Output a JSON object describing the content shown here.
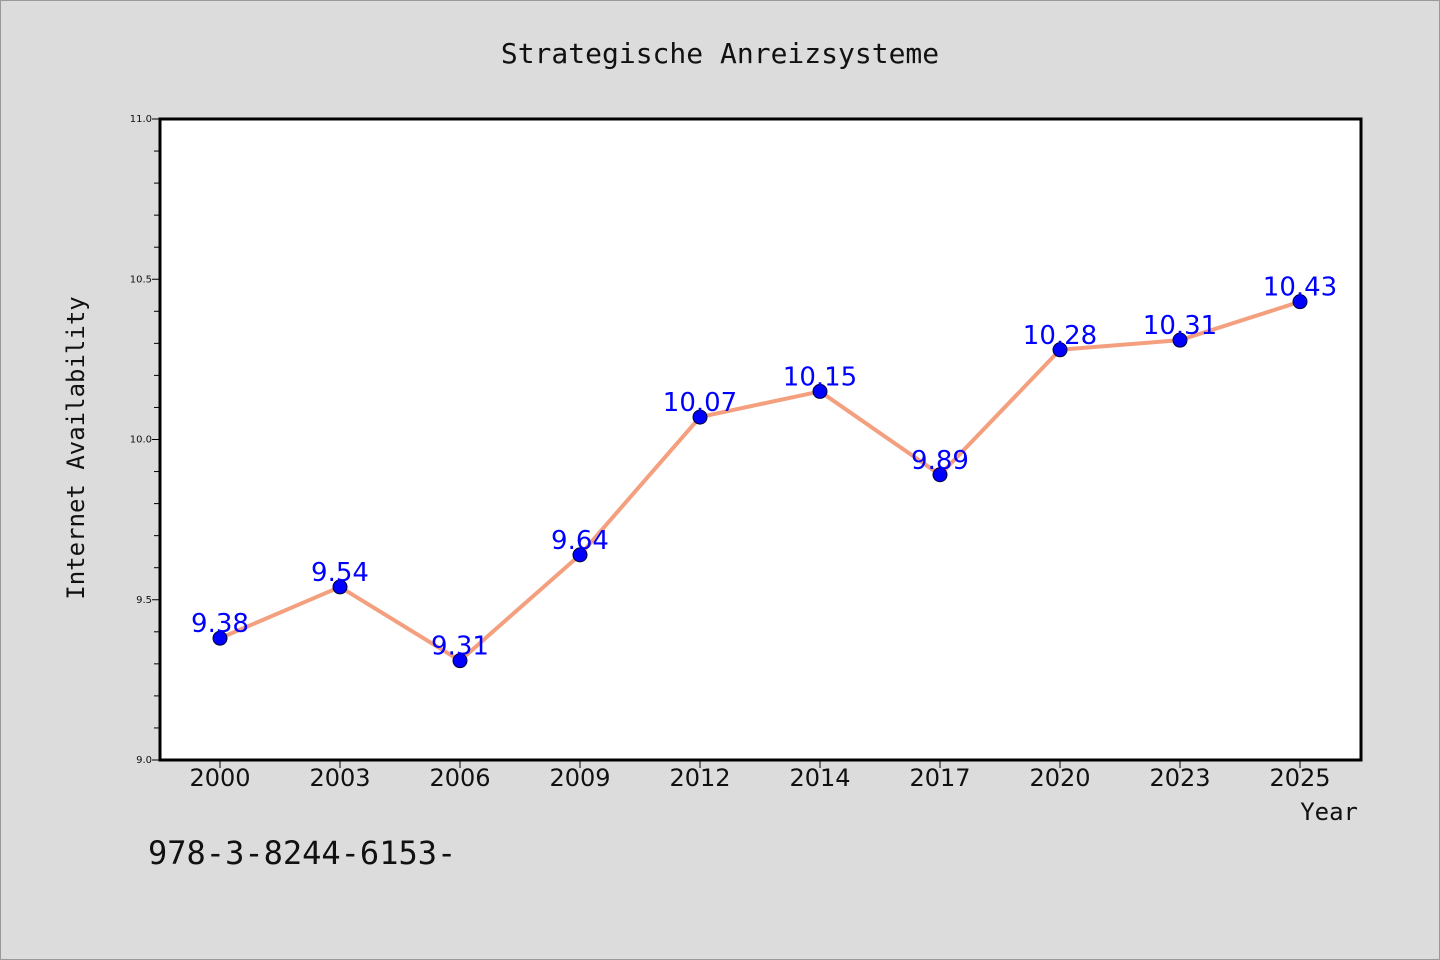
{
  "chart_data": {
    "type": "line",
    "title": "Strategische Anreizsysteme",
    "xlabel": "Year",
    "ylabel": "Internet Availability",
    "categories": [
      "2000",
      "2003",
      "2006",
      "2009",
      "2012",
      "2014",
      "2017",
      "2020",
      "2023",
      "2025"
    ],
    "series": [
      {
        "values": [
          9.38,
          9.54,
          9.31,
          9.64,
          10.07,
          10.15,
          9.89,
          10.28,
          10.31,
          10.43
        ],
        "line_color": "#f4a07f",
        "marker_color": "#0000ff"
      }
    ],
    "data_labels": [
      "9.38",
      "9.54",
      "9.31",
      "9.64",
      "10.07",
      "10.15",
      "9.89",
      "10.28",
      "10.31",
      "10.43"
    ],
    "ylim": [
      9.0,
      11.0
    ],
    "yticks": [
      "9.0",
      "9.5",
      "10.0",
      "10.5",
      "11.0"
    ],
    "grid": false,
    "legend": "none"
  },
  "footer_text": "978-3-8244-6153-"
}
